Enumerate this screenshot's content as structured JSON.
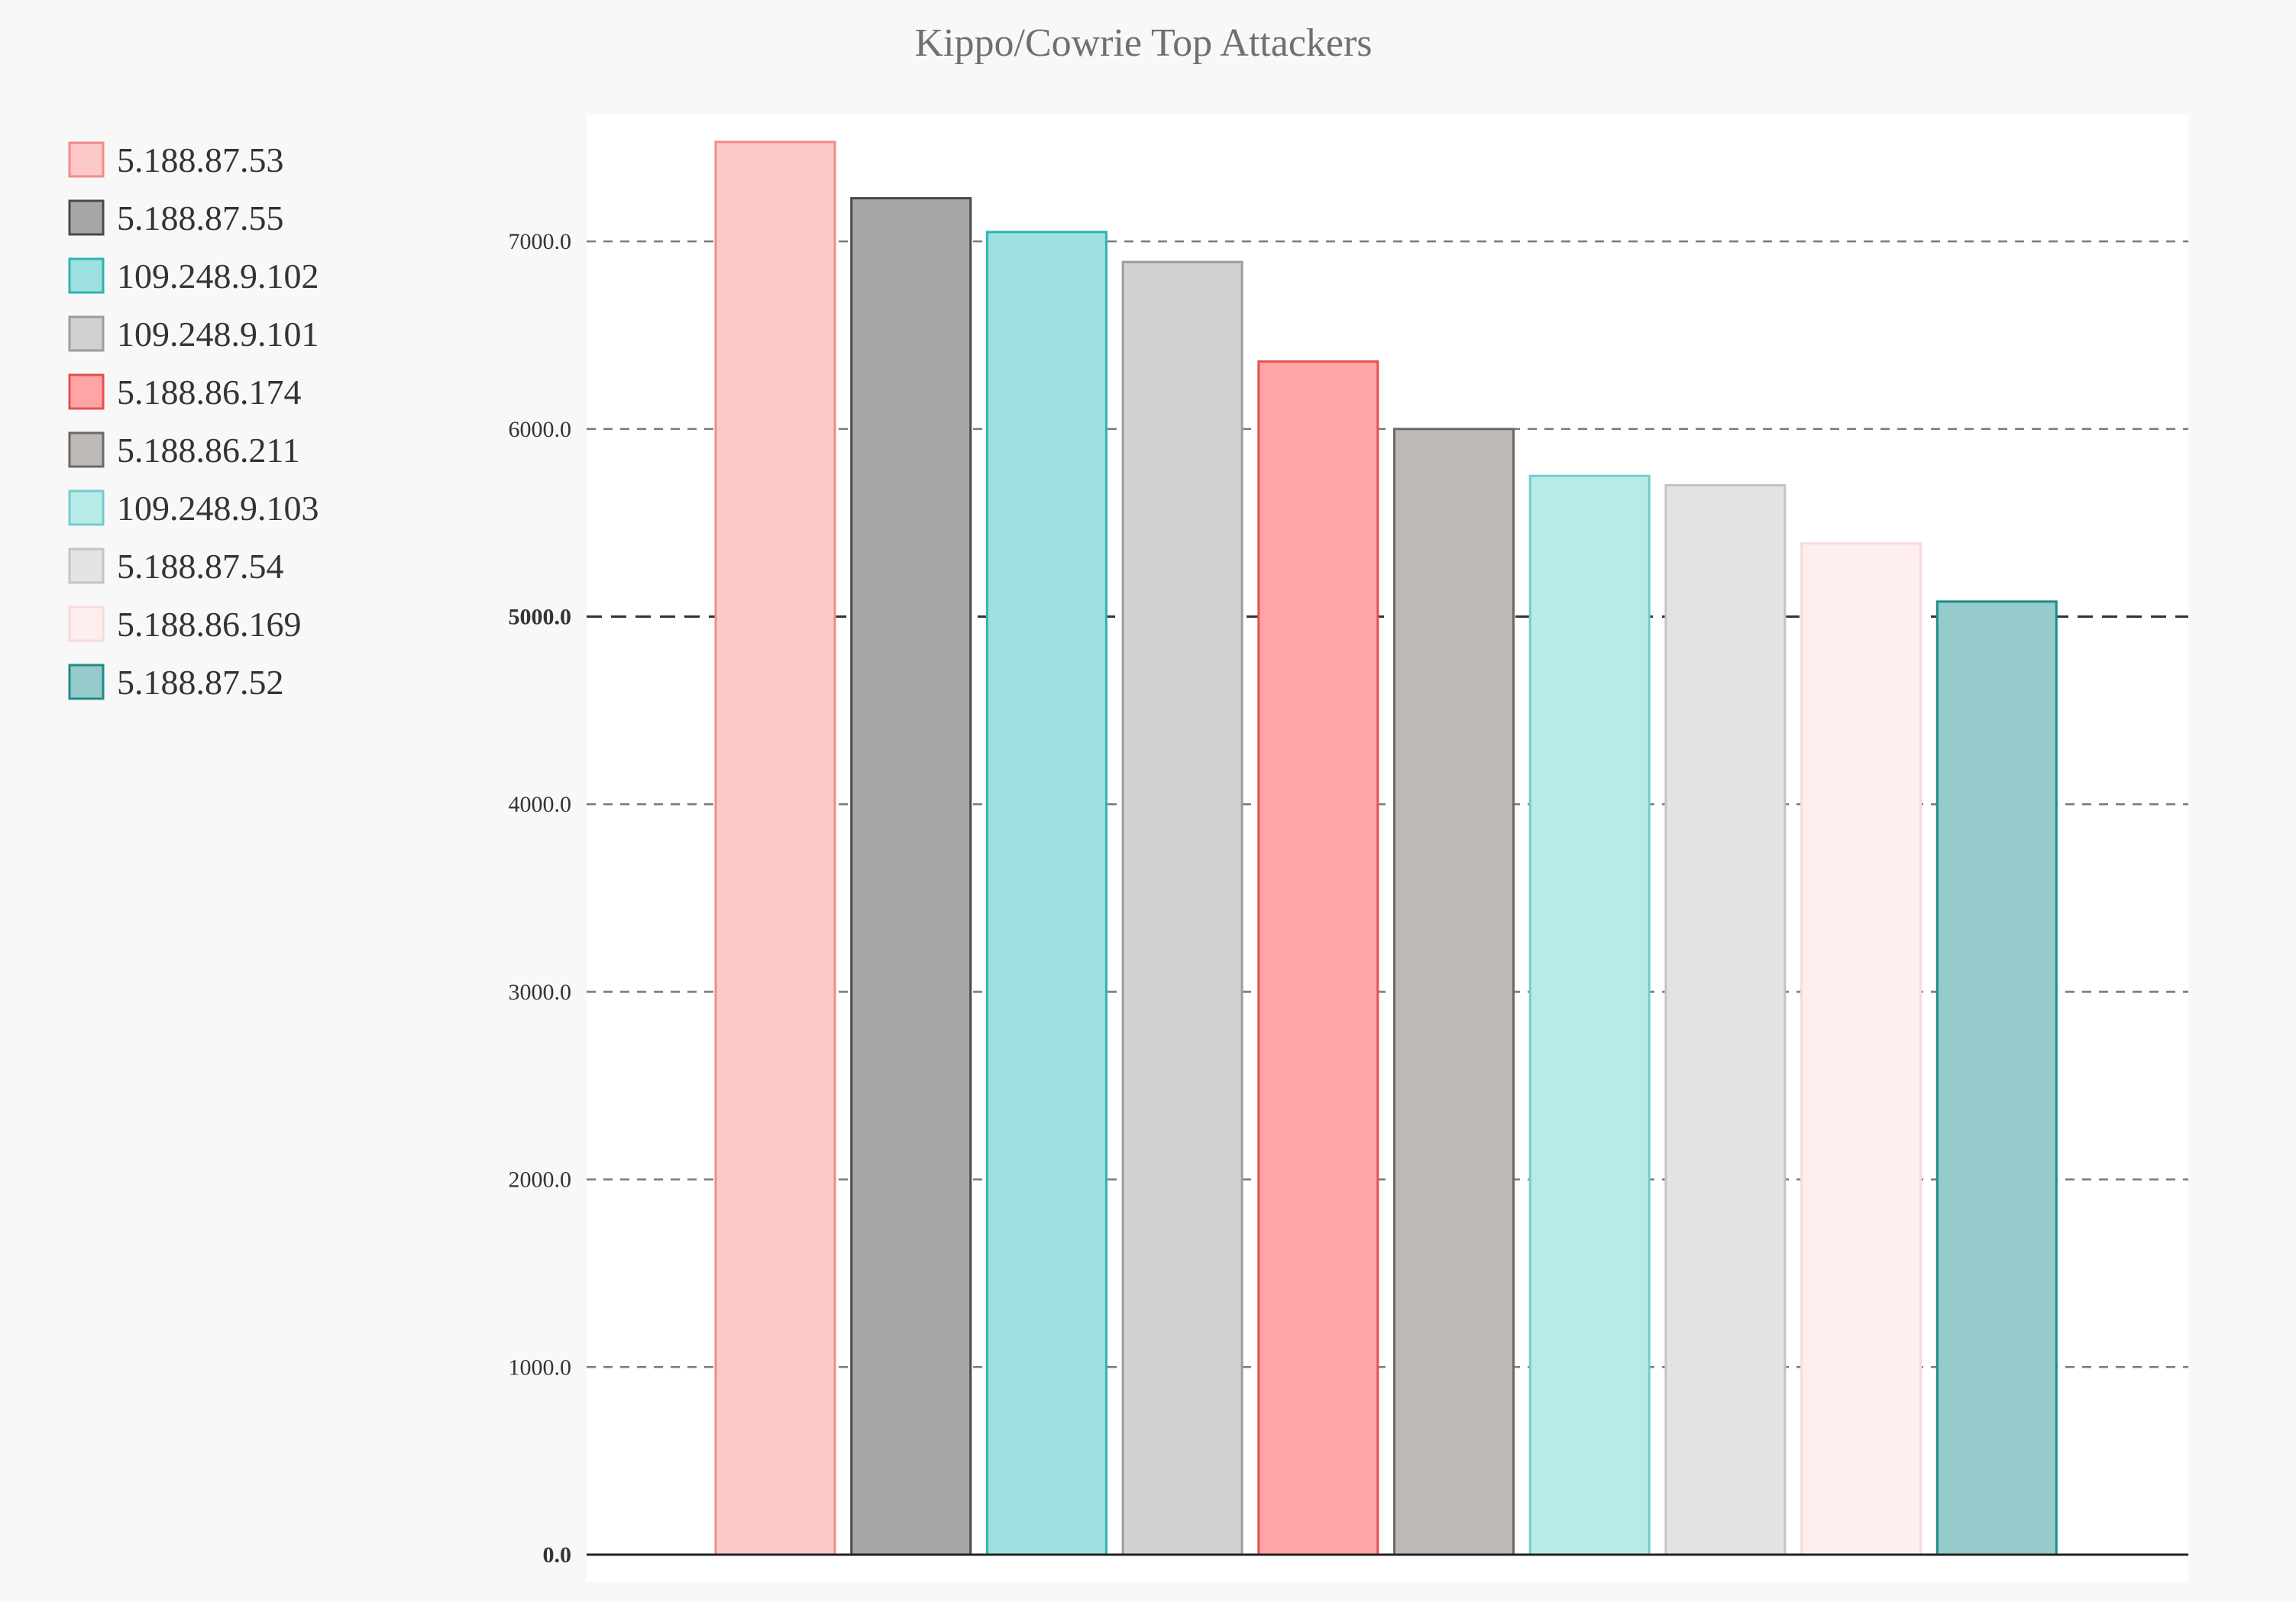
{
  "chart_data": {
    "type": "bar",
    "title": "Kippo/Cowrie Top Attackers",
    "xlabel": "",
    "ylabel": "",
    "ylim": [
      0,
      7600
    ],
    "yticks": [
      0,
      1000,
      2000,
      3000,
      4000,
      5000,
      6000,
      7000
    ],
    "ytick_labels": [
      "0.0",
      "1000.0",
      "2000.0",
      "3000.0",
      "4000.0",
      "5000.0",
      "6000.0",
      "7000.0"
    ],
    "grid": true,
    "legend_position": "left",
    "series": [
      {
        "name": "5.188.87.53",
        "value": 7530,
        "fill": "#fdc9c8",
        "stroke": "#f38a88"
      },
      {
        "name": "5.188.87.55",
        "value": 7230,
        "fill": "#a6a6a4",
        "stroke": "#4a4a4a"
      },
      {
        "name": "109.248.9.102",
        "value": 7050,
        "fill": "#9ee0df",
        "stroke": "#2eb3b1"
      },
      {
        "name": "109.248.9.101",
        "value": 6890,
        "fill": "#d0d2cf",
        "stroke": "#9c9e9b"
      },
      {
        "name": "5.188.86.174",
        "value": 6360,
        "fill": "#ffa5a5",
        "stroke": "#e84f50"
      },
      {
        "name": "5.188.86.211",
        "value": 6000,
        "fill": "#bdb9b6",
        "stroke": "#6d6966"
      },
      {
        "name": "109.248.9.103",
        "value": 5750,
        "fill": "#b8eae8",
        "stroke": "#6fcecc"
      },
      {
        "name": "5.188.87.54",
        "value": 5700,
        "fill": "#e3e3e3",
        "stroke": "#c4c4c4"
      },
      {
        "name": "5.188.86.169",
        "value": 5390,
        "fill": "#ffeeee",
        "stroke": "#f9d9da"
      },
      {
        "name": "5.188.87.52",
        "value": 5080,
        "fill": "#95cbcb",
        "stroke": "#1f8b8a"
      }
    ]
  }
}
